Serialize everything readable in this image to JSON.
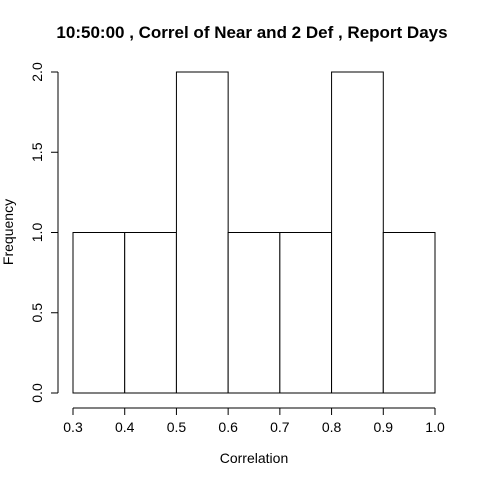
{
  "chart_data": {
    "type": "bar",
    "subtype": "histogram",
    "title": "10:50:00 , Correl of Near and 2 Def , Report Days",
    "xlabel": "Correlation",
    "ylabel": "Frequency",
    "bins": [
      {
        "start": 0.3,
        "end": 0.4,
        "count": 1
      },
      {
        "start": 0.4,
        "end": 0.5,
        "count": 1
      },
      {
        "start": 0.5,
        "end": 0.6,
        "count": 2
      },
      {
        "start": 0.6,
        "end": 0.7,
        "count": 1
      },
      {
        "start": 0.7,
        "end": 0.8,
        "count": 1
      },
      {
        "start": 0.8,
        "end": 0.9,
        "count": 2
      },
      {
        "start": 0.9,
        "end": 1.0,
        "count": 1
      }
    ],
    "xlim": [
      0.3,
      1.0
    ],
    "ylim": [
      0,
      2
    ],
    "x_ticks": [
      "0.3",
      "0.4",
      "0.5",
      "0.6",
      "0.7",
      "0.8",
      "0.9",
      "1.0"
    ],
    "y_ticks": [
      "0.0",
      "0.5",
      "1.0",
      "1.5",
      "2.0"
    ],
    "bar_fill": "#ffffff",
    "bar_stroke": "#000000",
    "grid": false,
    "legend": "none"
  }
}
